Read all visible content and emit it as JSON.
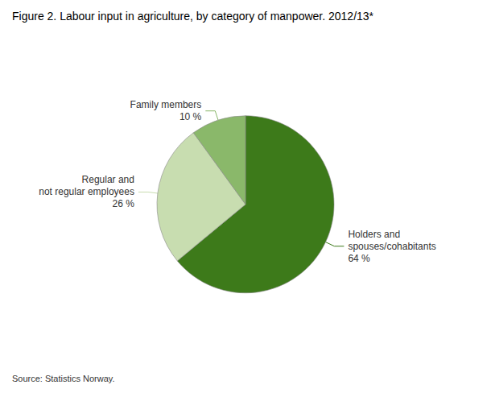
{
  "chart_data": {
    "type": "pie",
    "title": "Figure 2. Labour input in agriculture, by category of manpower. 2012/13*",
    "annotations": [
      "Source: Statistics Norway."
    ],
    "categories": [
      "Holders and\nspouses/cohabitants",
      "Regular and\nnot regular employees",
      "Family members"
    ],
    "values": [
      64,
      26,
      10
    ],
    "value_labels": [
      "64 %",
      "26 %",
      "10 %"
    ],
    "colors": [
      "#3d7a1a",
      "#c8ddb0",
      "#8ab86a"
    ],
    "data_labels": true,
    "legend": false
  }
}
